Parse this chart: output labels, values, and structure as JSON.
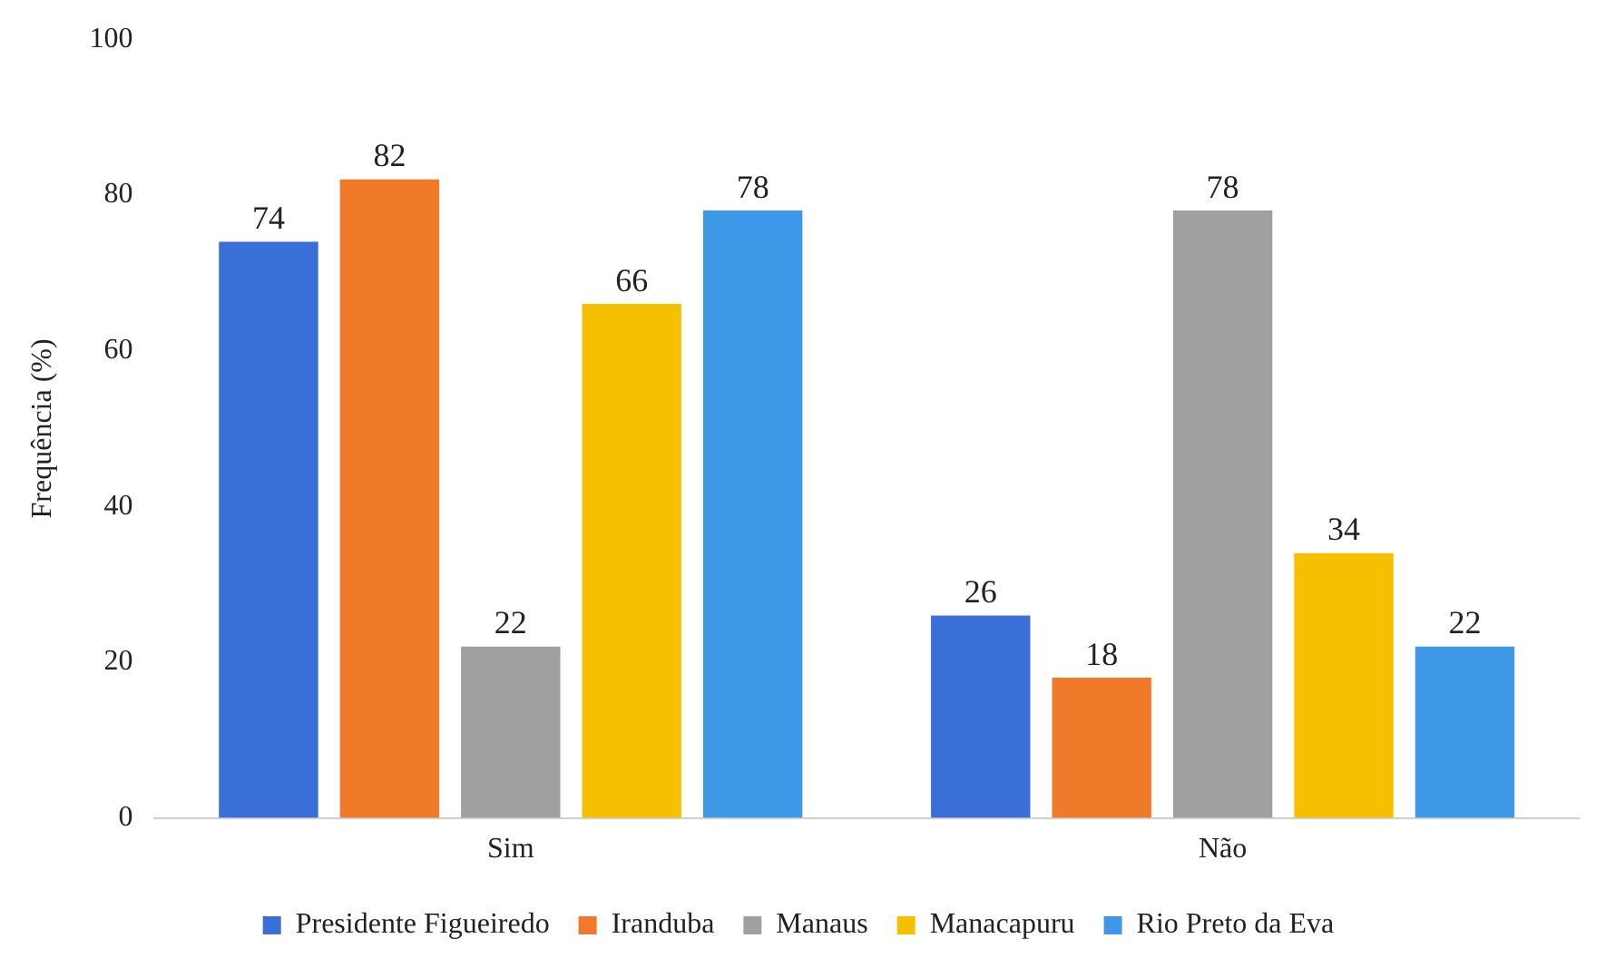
{
  "chart_data": {
    "type": "bar",
    "ylabel": "Frequência (%)",
    "categories": [
      "Sim",
      "Não"
    ],
    "series": [
      {
        "name": "Presidente Figueiredo",
        "color": "#3a6fd8",
        "values": [
          74,
          26
        ]
      },
      {
        "name": "Iranduba",
        "color": "#f07a2a",
        "values": [
          82,
          18
        ]
      },
      {
        "name": "Manaus",
        "color": "#a0a0a0",
        "values": [
          22,
          78
        ]
      },
      {
        "name": "Manacapuru",
        "color": "#f5c000",
        "values": [
          66,
          34
        ]
      },
      {
        "name": "Rio Preto da Eva",
        "color": "#3f97e8",
        "values": [
          78,
          22
        ]
      }
    ],
    "ylim": [
      0,
      100
    ],
    "yticks": [
      0,
      20,
      40,
      60,
      80,
      100
    ],
    "grid": false,
    "legend": "bottom",
    "data_labels": true
  }
}
